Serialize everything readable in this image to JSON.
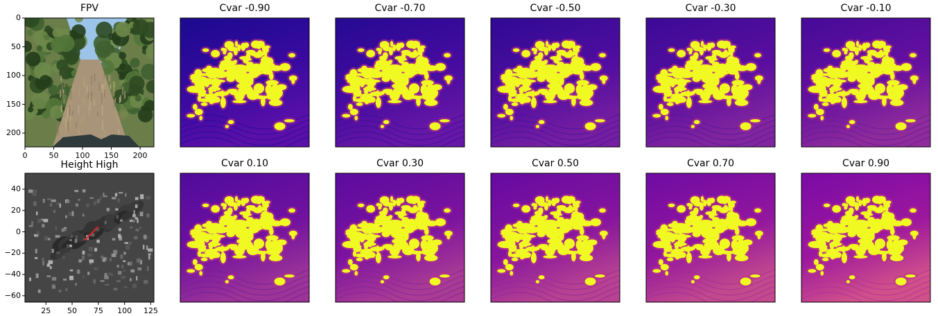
{
  "chart_data": [
    {
      "type": "image",
      "title": "FPV",
      "content": "first-person camera view of a dirt trail between shrubs and trees under a blue sky, vehicle hood at bottom",
      "x_ticks": [
        "0",
        "50",
        "100",
        "150",
        "200"
      ],
      "y_ticks": [
        "0",
        "50",
        "100",
        "150",
        "200"
      ],
      "xlim": [
        0,
        224
      ],
      "ylim": [
        224,
        0
      ],
      "colors": {
        "sky": "#9cc4e8",
        "foliage": "#3a5a2a",
        "trail": "#a89478",
        "hood": "#2f3a3c"
      }
    },
    {
      "type": "heatmap",
      "title": "Height High",
      "colormap": "gray",
      "x_ticks": [
        "25",
        "50",
        "75",
        "100",
        "125"
      ],
      "y_ticks": [
        "40",
        "20",
        "0",
        "−20",
        "−40",
        "−60"
      ],
      "xlim": [
        5,
        128
      ],
      "ylim": [
        -66,
        55
      ],
      "annotation": {
        "type": "arrow",
        "color": "#e02020",
        "from": [
          62,
          -8
        ],
        "to": [
          75,
          5
        ]
      }
    },
    {
      "type": "heatmap_grid",
      "colormap": "plasma",
      "axes": "off",
      "panels": [
        {
          "title": "Cvar -0.90",
          "cvar": -0.9
        },
        {
          "title": "Cvar -0.70",
          "cvar": -0.7
        },
        {
          "title": "Cvar -0.50",
          "cvar": -0.5
        },
        {
          "title": "Cvar -0.30",
          "cvar": -0.3
        },
        {
          "title": "Cvar -0.10",
          "cvar": -0.1
        },
        {
          "title": "Cvar 0.10",
          "cvar": 0.1
        },
        {
          "title": "Cvar 0.30",
          "cvar": 0.3
        },
        {
          "title": "Cvar 0.50",
          "cvar": 0.5
        },
        {
          "title": "Cvar 0.70",
          "cvar": 0.7
        },
        {
          "title": "Cvar 0.90",
          "cvar": 0.9
        }
      ],
      "colors": {
        "low": "#0d0887",
        "mid": "#9c179e",
        "high": "#f0f921"
      }
    }
  ]
}
